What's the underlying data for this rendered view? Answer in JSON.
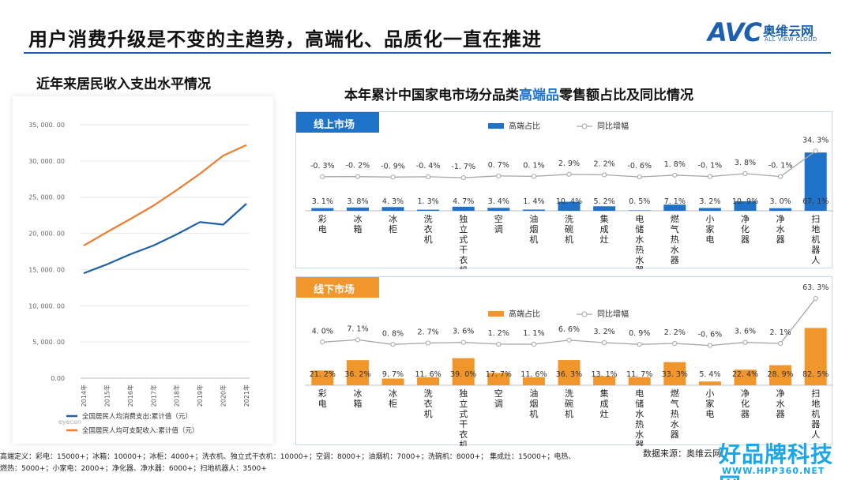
{
  "header": {
    "title": "用户消费升级是不变的主趋势，高端化、品质化一直在推进",
    "logo_mark": "AVC",
    "logo_cn": "奥维云网",
    "logo_en": "ALL VIEW CLOUD"
  },
  "left": {
    "title": "近年来居民收入支出水平情况"
  },
  "right": {
    "title_pre": "本年累计中国家电市场分品类",
    "title_hl": "高端品",
    "title_post": "零售额占比及同比情况",
    "online_tag": "线上市场",
    "offline_tag": "线下市场"
  },
  "colors": {
    "blue": "#1e73c8",
    "orange": "#f0962a",
    "line_consume": "#1f5fa6",
    "line_income": "#ed7d31",
    "gray_line": "#a6a6a6"
  },
  "chart_data": [
    {
      "type": "line",
      "x": [
        "2014年",
        "2015年",
        "2016年",
        "2017年",
        "2018年",
        "2019年",
        "2020年",
        "2021年"
      ],
      "ylim": [
        0,
        35000
      ],
      "yticks": [
        "0.00",
        "5, 000. 00",
        "10, 000. 00",
        "15, 000. 00",
        "20, 000. 00",
        "25, 000. 00",
        "30, 000. 00",
        "35, 000. 00"
      ],
      "series": [
        {
          "name": "全国居民人均消费支出:累计值（元）",
          "values": [
            14491,
            15712,
            17111,
            18322,
            19853,
            21559,
            21210,
            24100
          ]
        },
        {
          "name": "全国居民人均可支配收入:累计值（元）",
          "values": [
            18311,
            20167,
            21966,
            23821,
            25974,
            28228,
            30733,
            32189
          ]
        }
      ],
      "watermark": "eyecon"
    },
    {
      "type": "bar",
      "panel": "线上市场",
      "categories": [
        "彩电",
        "冰箱",
        "冰柜",
        "洗衣机",
        "独立式干衣机",
        "空调",
        "油烟机",
        "洗碗机",
        "集成灶",
        "电储水热水器",
        "燃气热水器",
        "小家电",
        "净化器",
        "净水器",
        "扫地机器人"
      ],
      "series": [
        {
          "name": "高端占比",
          "values": [
            3.1,
            3.8,
            4.3,
            1.3,
            4.7,
            3.4,
            1.4,
            10.4,
            5.2,
            0.5,
            7.1,
            3.2,
            10.9,
            3.0,
            67.1
          ],
          "labels": [
            "3. 1%",
            "3. 8%",
            "4. 3%",
            "1. 3%",
            "4. 7%",
            "3. 4%",
            "1. 4%",
            "10. 4%",
            "5. 2%",
            "0. 5%",
            "7. 1%",
            "3. 2%",
            "10. 9%",
            "3. 0%",
            "67. 1%"
          ]
        },
        {
          "name": "同比增幅",
          "values": [
            -0.3,
            -0.2,
            -0.9,
            -0.4,
            -1.7,
            0.7,
            0.1,
            2.9,
            2.2,
            -0.6,
            1.8,
            -0.1,
            3.8,
            -0.1,
            34.3
          ],
          "labels": [
            "-0. 3%",
            "-0. 2%",
            "-0. 9%",
            "-0. 4%",
            "-1. 7%",
            "0. 7%",
            "0. 1%",
            "2. 9%",
            "2. 2%",
            "-0. 6%",
            "1. 8%",
            "-0. 1%",
            "3. 8%",
            "-0. 1%",
            "34. 3%"
          ]
        }
      ]
    },
    {
      "type": "bar",
      "panel": "线下市场",
      "categories": [
        "彩电",
        "冰箱",
        "冰柜",
        "洗衣机",
        "独立式干衣机",
        "空调",
        "油烟机",
        "洗碗机",
        "集成灶",
        "电储水热水器",
        "燃气热水器",
        "小家电",
        "净化器",
        "净水器",
        "扫地机器人"
      ],
      "series": [
        {
          "name": "高端占比",
          "values": [
            21.2,
            36.2,
            9.7,
            11.6,
            39.0,
            17.7,
            11.6,
            36.3,
            13.1,
            11.7,
            33.3,
            5.4,
            22.4,
            28.9,
            82.5
          ],
          "labels": [
            "21. 2%",
            "36. 2%",
            "9. 7%",
            "11. 6%",
            "39. 0%",
            "17. 7%",
            "11. 6%",
            "36. 3%",
            "13. 1%",
            "11. 7%",
            "33. 3%",
            "5. 4%",
            "22. 4%",
            "28. 9%",
            "82. 5%"
          ]
        },
        {
          "name": "同比增幅",
          "values": [
            4.0,
            7.1,
            0.8,
            2.7,
            3.6,
            1.2,
            1.1,
            6.6,
            3.2,
            0.9,
            2.2,
            -0.6,
            3.6,
            2.1,
            63.3
          ],
          "labels": [
            "4. 0%",
            "7. 1%",
            "0. 8%",
            "2. 7%",
            "3. 6%",
            "1. 2%",
            "1. 1%",
            "6. 6%",
            "3. 2%",
            "0. 9%",
            "2. 2%",
            "-0. 6%",
            "3. 6%",
            "2. 1%",
            "63. 3%"
          ]
        }
      ]
    }
  ],
  "footnote": {
    "line1": "高端定义：彩电：15000+；冰箱：10000+；冰柜：4000+；洗衣机、独立式干衣机：10000+；空调：8000+；油烟机：7000+；洗碗机：8000+；      集成灶：15000+；电热、",
    "line2": "燃热：5000+；小家电：2000+；净化器、净水器：6000+；扫地机器人：3500+"
  },
  "source": "数据来源：奥维云网",
  "watermark": {
    "title": "好品牌科技网",
    "url": "WWW.HPP360.NET"
  }
}
